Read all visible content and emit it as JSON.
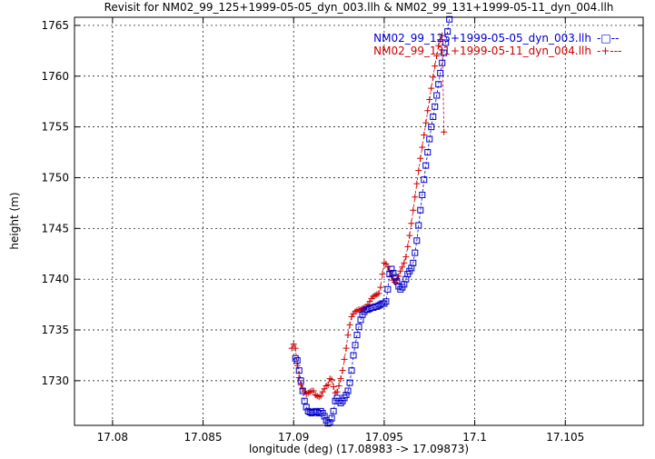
{
  "chart_data": {
    "type": "line",
    "title": "Revisit for NM02_99_125+1999-05-05_dyn_003.llh & NM02_99_131+1999-05-11_dyn_004.llh",
    "xlabel": "longitude (deg) (17.08983 -> 17.09873)",
    "ylabel": "height (m)",
    "xlim": [
      17.0779,
      17.1093
    ],
    "ylim": [
      1725.6,
      1765.8
    ],
    "x_ticks": [
      17.08,
      17.085,
      17.09,
      17.095,
      17.1,
      17.105
    ],
    "x_tick_labels": [
      "17.08",
      "17.085",
      "17.09",
      "17.095",
      "17.1",
      "17.105"
    ],
    "y_ticks": [
      1730,
      1735,
      1740,
      1745,
      1750,
      1755,
      1760,
      1765
    ],
    "y_tick_labels": [
      "1730",
      "1735",
      "1740",
      "1745",
      "1750",
      "1755",
      "1760",
      "1765"
    ],
    "grid": true,
    "legend_position": "top-right",
    "series": [
      {
        "name": "NM02_99_125+1999-05-05_dyn_003.llh",
        "color": "#0000cc",
        "marker": "square",
        "line_style": "dashed",
        "legend_sample": "-□--",
        "x": [
          17.0901,
          17.0902,
          17.0903,
          17.0904,
          17.0905,
          17.0906,
          17.0907,
          17.0908,
          17.0909,
          17.091,
          17.0911,
          17.0912,
          17.0913,
          17.0914,
          17.0915,
          17.0916,
          17.0917,
          17.0918,
          17.0919,
          17.092,
          17.0921,
          17.0922,
          17.0923,
          17.0924,
          17.0925,
          17.0926,
          17.0927,
          17.0928,
          17.0929,
          17.093,
          17.0931,
          17.0932,
          17.0933,
          17.0934,
          17.0935,
          17.0936,
          17.0937,
          17.0938,
          17.0939,
          17.094,
          17.0941,
          17.0942,
          17.0943,
          17.0944,
          17.0945,
          17.0946,
          17.0947,
          17.0948,
          17.0949,
          17.095,
          17.0951,
          17.0952,
          17.0953,
          17.0954,
          17.0955,
          17.0956,
          17.0957,
          17.0958,
          17.0959,
          17.096,
          17.0961,
          17.0962,
          17.0963,
          17.0964,
          17.0965,
          17.0966,
          17.0967,
          17.0968,
          17.0969,
          17.097,
          17.0971,
          17.0972,
          17.0973,
          17.0974,
          17.0975,
          17.0976,
          17.0977,
          17.0978,
          17.0979,
          17.098,
          17.0981,
          17.0982,
          17.0983,
          17.0984,
          17.0985,
          17.0986
        ],
        "y": [
          1732.2,
          1732.0,
          1731.0,
          1730.0,
          1729.0,
          1728.0,
          1727.4,
          1727.0,
          1726.9,
          1726.8,
          1726.9,
          1727.0,
          1726.9,
          1726.8,
          1727.0,
          1726.8,
          1726.5,
          1726.1,
          1725.8,
          1725.9,
          1726.3,
          1727.0,
          1728.0,
          1728.3,
          1728.0,
          1727.8,
          1728.0,
          1728.3,
          1728.6,
          1729.0,
          1729.8,
          1731.0,
          1732.5,
          1733.5,
          1734.5,
          1735.3,
          1736.0,
          1736.5,
          1736.8,
          1737.0,
          1737.0,
          1737.1,
          1737.2,
          1737.2,
          1737.3,
          1737.3,
          1737.4,
          1737.5,
          1737.6,
          1737.6,
          1737.8,
          1739.0,
          1740.5,
          1741.0,
          1740.6,
          1740.2,
          1739.8,
          1739.3,
          1739.0,
          1739.2,
          1739.5,
          1740.0,
          1740.5,
          1740.8,
          1741.1,
          1741.6,
          1742.6,
          1743.8,
          1745.3,
          1746.8,
          1748.3,
          1749.8,
          1751.2,
          1752.5,
          1753.8,
          1755.0,
          1756.0,
          1757.0,
          1758.1,
          1759.2,
          1760.3,
          1761.3,
          1762.3,
          1763.3,
          1764.4,
          1765.6
        ]
      },
      {
        "name": "NM02_99_131+1999-05-11_dyn_004.llh",
        "color": "#cc0000",
        "marker": "plus",
        "line_style": "dashed",
        "legend_sample": "-+---",
        "x": [
          17.0899,
          17.09,
          17.0901,
          17.0902,
          17.0903,
          17.0904,
          17.0905,
          17.0906,
          17.0907,
          17.0908,
          17.0909,
          17.091,
          17.0911,
          17.0912,
          17.0913,
          17.0914,
          17.0915,
          17.0916,
          17.0917,
          17.0918,
          17.0919,
          17.092,
          17.0921,
          17.0922,
          17.0923,
          17.0924,
          17.0925,
          17.0926,
          17.0927,
          17.0928,
          17.0929,
          17.093,
          17.0931,
          17.0932,
          17.0933,
          17.0934,
          17.0935,
          17.0936,
          17.0937,
          17.0938,
          17.0939,
          17.094,
          17.0941,
          17.0942,
          17.0943,
          17.0944,
          17.0945,
          17.0946,
          17.0947,
          17.0948,
          17.0949,
          17.095,
          17.0951,
          17.0952,
          17.0953,
          17.0954,
          17.0955,
          17.0956,
          17.0957,
          17.0958,
          17.0959,
          17.096,
          17.0961,
          17.0962,
          17.0963,
          17.0964,
          17.0965,
          17.0966,
          17.0967,
          17.0968,
          17.0969,
          17.097,
          17.0971,
          17.0972,
          17.0973,
          17.0974,
          17.0975,
          17.0976,
          17.0977,
          17.0978,
          17.0979,
          17.098,
          17.0981,
          17.0982,
          17.0983
        ],
        "y": [
          1733.2,
          1733.6,
          1733.2,
          1731.5,
          1730.3,
          1729.6,
          1729.2,
          1728.9,
          1728.7,
          1728.8,
          1728.9,
          1729.0,
          1729.0,
          1728.6,
          1728.5,
          1728.4,
          1728.5,
          1728.9,
          1729.2,
          1729.5,
          1729.6,
          1730.2,
          1730.1,
          1729.4,
          1728.8,
          1728.9,
          1729.5,
          1730.2,
          1731.0,
          1732.1,
          1733.2,
          1734.5,
          1735.5,
          1736.3,
          1736.6,
          1736.8,
          1736.9,
          1737.0,
          1737.0,
          1737.1,
          1737.2,
          1737.3,
          1737.5,
          1737.8,
          1738.1,
          1738.3,
          1738.4,
          1738.5,
          1738.6,
          1739.2,
          1740.5,
          1741.6,
          1741.5,
          1741.2,
          1740.8,
          1740.3,
          1739.9,
          1739.7,
          1739.9,
          1740.3,
          1740.8,
          1741.2,
          1741.6,
          1742.2,
          1743.2,
          1744.3,
          1745.5,
          1746.8,
          1748.1,
          1749.4,
          1750.7,
          1751.9,
          1753.0,
          1754.2,
          1755.4,
          1756.6,
          1757.7,
          1758.8,
          1759.9,
          1761.0,
          1762.0,
          1763.0,
          1763.6,
          1764.0,
          1754.5
        ]
      }
    ]
  }
}
